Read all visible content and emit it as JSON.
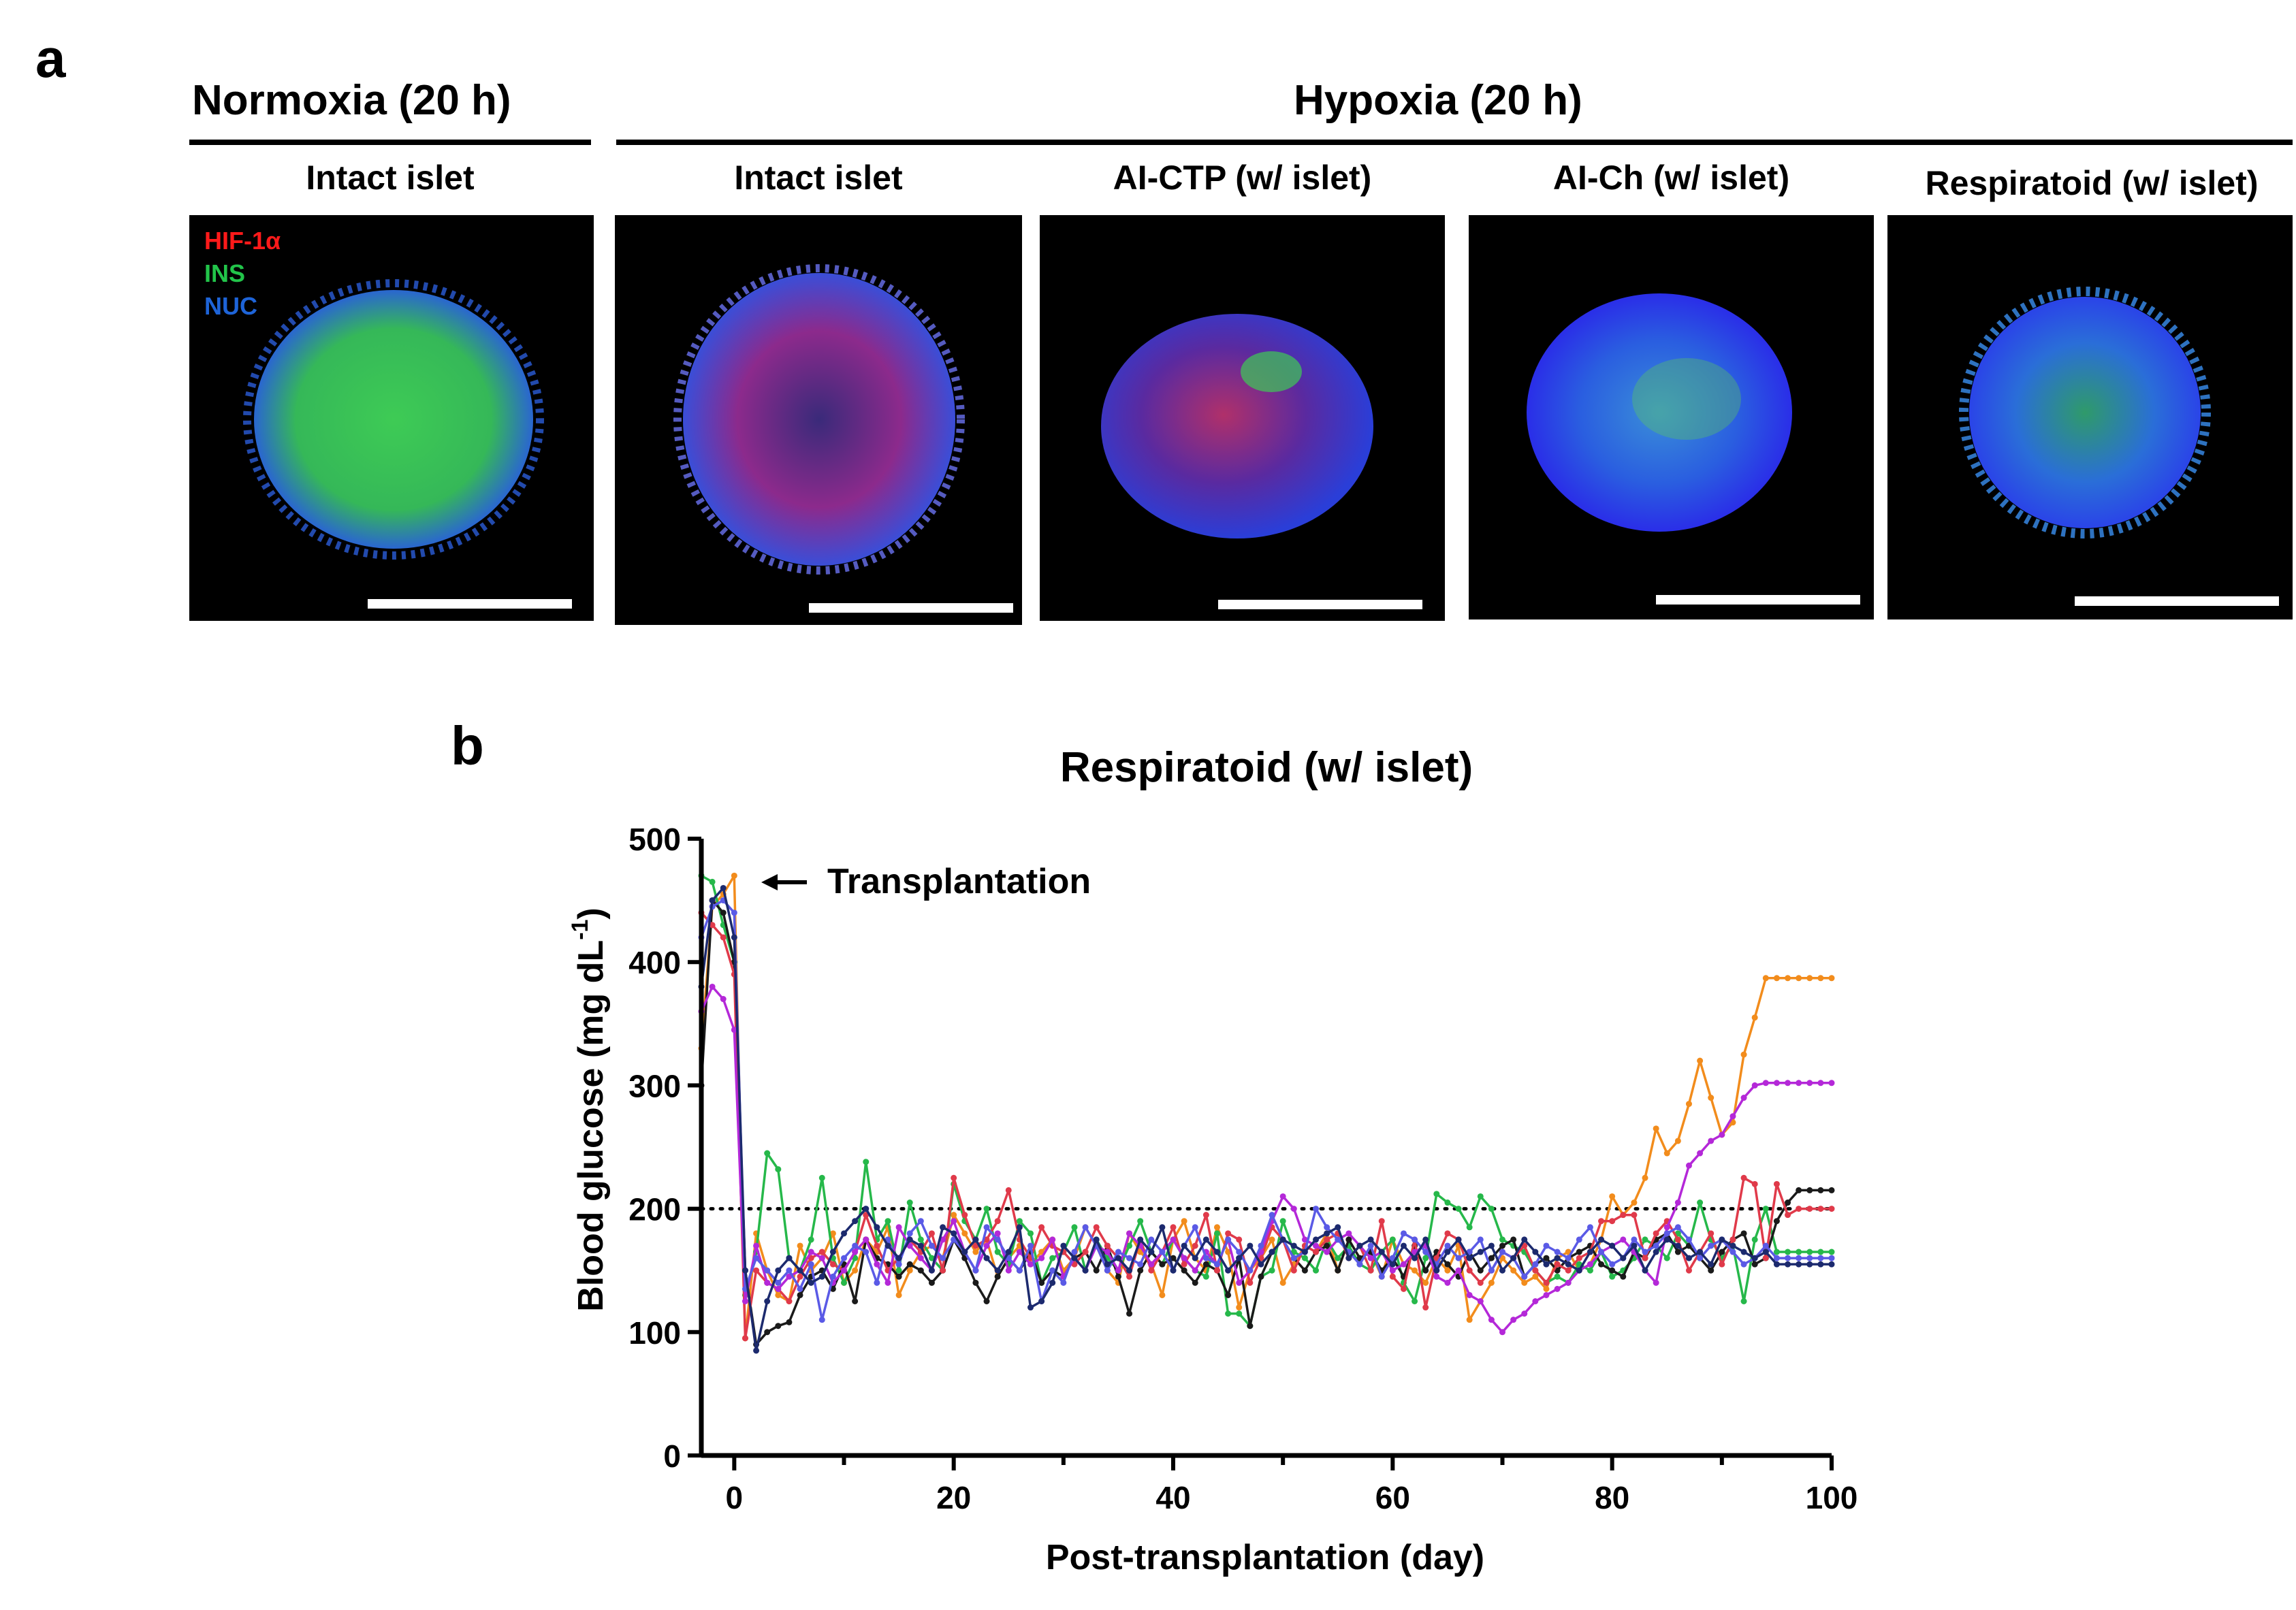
{
  "panel_a": {
    "letter": "a",
    "groups": [
      {
        "title": "Normoxia (20 h)"
      },
      {
        "title": "Hypoxia (20 h)"
      }
    ],
    "panels": [
      {
        "label": "Intact islet",
        "shade": "normoxia"
      },
      {
        "label": "Intact islet",
        "shade": "hypoxia"
      },
      {
        "label": "AI-CTP (w/ islet)",
        "shade": "aictp"
      },
      {
        "label": "AI-Ch (w/ islet)",
        "shade": "aich"
      },
      {
        "label": "Respiratoid (w/ islet)",
        "shade": "respiratoid"
      }
    ],
    "stain_legend": [
      {
        "label": "HIF-1α",
        "color": "#ff1a1a"
      },
      {
        "label": "INS",
        "color": "#22c44a"
      },
      {
        "label": "NUC",
        "color": "#1e64d8"
      }
    ]
  },
  "panel_b": {
    "letter": "b",
    "annotation": "Transplantation"
  },
  "chart_data": {
    "type": "line",
    "title": "Respiratoid (w/ islet)",
    "xlabel": "Post-transplantation (day)",
    "ylabel_main": "Blood glucose (mg dL",
    "ylabel_sup": "-1",
    "ylabel_close": ")",
    "xlim": [
      -3,
      100
    ],
    "ylim": [
      0,
      500
    ],
    "xticks": [
      0,
      20,
      40,
      60,
      80,
      100
    ],
    "yticks": [
      0,
      100,
      200,
      300,
      400,
      500
    ],
    "threshold": 200,
    "x": [
      -3,
      -2,
      -1,
      0,
      1,
      2,
      3,
      4,
      5,
      6,
      7,
      8,
      9,
      10,
      11,
      12,
      13,
      14,
      15,
      16,
      17,
      18,
      19,
      20,
      21,
      22,
      23,
      24,
      25,
      26,
      27,
      28,
      29,
      30,
      31,
      32,
      33,
      34,
      35,
      36,
      37,
      38,
      39,
      40,
      41,
      42,
      43,
      44,
      45,
      46,
      47,
      48,
      49,
      50,
      51,
      52,
      53,
      54,
      55,
      56,
      57,
      58,
      59,
      60,
      61,
      62,
      63,
      64,
      65,
      66,
      67,
      68,
      69,
      70,
      71,
      72,
      73,
      74,
      75,
      76,
      77,
      78,
      79,
      80,
      81,
      82,
      83,
      84,
      85,
      86,
      87,
      88,
      89,
      90,
      91,
      92,
      93,
      94,
      95,
      96,
      97,
      98,
      99,
      100
    ],
    "series": [
      {
        "color": "#f28c1c",
        "values": [
          330,
          445,
          455,
          470,
          95,
          180,
          150,
          130,
          125,
          170,
          150,
          160,
          180,
          140,
          150,
          175,
          165,
          185,
          130,
          150,
          165,
          170,
          160,
          195,
          180,
          165,
          175,
          145,
          160,
          170,
          155,
          165,
          175,
          150,
          160,
          185,
          170,
          150,
          140,
          180,
          165,
          155,
          130,
          175,
          190,
          160,
          150,
          185,
          165,
          120,
          150,
          160,
          175,
          140,
          155,
          170,
          165,
          180,
          150,
          175,
          160,
          165,
          145,
          175,
          155,
          150,
          140,
          160,
          150,
          170,
          110,
          125,
          140,
          160,
          150,
          140,
          145,
          135,
          160,
          165,
          150,
          155,
          175,
          210,
          195,
          205,
          225,
          265,
          245,
          255,
          285,
          320,
          290,
          260,
          270,
          325,
          355,
          387,
          387,
          387,
          387,
          387,
          387,
          387
        ]
      },
      {
        "color": "#26b84a",
        "values": [
          470,
          465,
          430,
          400,
          130,
          165,
          245,
          232,
          160,
          150,
          175,
          225,
          160,
          140,
          160,
          238,
          175,
          190,
          150,
          205,
          175,
          160,
          150,
          220,
          190,
          175,
          200,
          165,
          155,
          190,
          180,
          140,
          160,
          165,
          185,
          150,
          175,
          160,
          150,
          170,
          190,
          165,
          155,
          175,
          160,
          150,
          145,
          180,
          115,
          115,
          105,
          145,
          150,
          190,
          165,
          160,
          150,
          175,
          160,
          170,
          155,
          150,
          165,
          175,
          140,
          125,
          160,
          212,
          205,
          200,
          185,
          210,
          200,
          175,
          170,
          165,
          150,
          140,
          145,
          140,
          155,
          150,
          165,
          145,
          150,
          160,
          175,
          170,
          160,
          180,
          170,
          205,
          175,
          160,
          170,
          125,
          175,
          200,
          165,
          165,
          165,
          165,
          165,
          165
        ]
      },
      {
        "color": "#1a1a1a",
        "values": [
          300,
          450,
          440,
          400,
          150,
          90,
          100,
          105,
          108,
          130,
          145,
          150,
          135,
          155,
          125,
          175,
          160,
          155,
          145,
          155,
          150,
          140,
          150,
          175,
          160,
          140,
          125,
          145,
          160,
          150,
          165,
          140,
          150,
          145,
          160,
          165,
          150,
          170,
          145,
          115,
          150,
          165,
          155,
          160,
          150,
          140,
          155,
          150,
          130,
          160,
          105,
          145,
          165,
          175,
          160,
          150,
          165,
          170,
          150,
          175,
          160,
          165,
          150,
          160,
          145,
          170,
          150,
          165,
          155,
          145,
          165,
          150,
          160,
          170,
          175,
          145,
          155,
          160,
          150,
          160,
          165,
          170,
          155,
          150,
          145,
          165,
          160,
          175,
          180,
          165,
          170,
          160,
          150,
          165,
          175,
          180,
          155,
          160,
          190,
          205,
          215,
          215,
          215,
          215
        ]
      },
      {
        "color": "#e03a4a",
        "values": [
          440,
          430,
          420,
          390,
          95,
          150,
          140,
          135,
          125,
          145,
          160,
          165,
          155,
          150,
          165,
          195,
          170,
          150,
          160,
          175,
          165,
          180,
          150,
          225,
          195,
          170,
          175,
          190,
          215,
          175,
          160,
          185,
          170,
          165,
          155,
          165,
          185,
          170,
          160,
          145,
          175,
          150,
          165,
          185,
          155,
          170,
          195,
          150,
          180,
          175,
          140,
          160,
          185,
          175,
          150,
          170,
          165,
          175,
          180,
          160,
          170,
          150,
          190,
          145,
          135,
          175,
          120,
          160,
          180,
          175,
          150,
          140,
          150,
          165,
          160,
          170,
          150,
          140,
          155,
          150,
          160,
          165,
          190,
          190,
          195,
          195,
          160,
          180,
          190,
          175,
          150,
          165,
          180,
          155,
          175,
          225,
          220,
          160,
          220,
          195,
          200,
          200,
          200,
          200
        ]
      },
      {
        "color": "#b428d8",
        "values": [
          360,
          380,
          370,
          345,
          125,
          170,
          140,
          135,
          145,
          150,
          165,
          160,
          140,
          150,
          165,
          175,
          155,
          140,
          185,
          170,
          160,
          150,
          175,
          190,
          165,
          150,
          170,
          180,
          150,
          165,
          155,
          160,
          175,
          145,
          160,
          150,
          170,
          165,
          150,
          180,
          170,
          155,
          165,
          175,
          160,
          150,
          165,
          155,
          175,
          140,
          150,
          165,
          190,
          210,
          200,
          175,
          170,
          165,
          175,
          180,
          170,
          160,
          165,
          150,
          155,
          165,
          170,
          145,
          140,
          150,
          130,
          125,
          110,
          100,
          110,
          115,
          125,
          130,
          135,
          140,
          150,
          155,
          165,
          170,
          175,
          165,
          150,
          140,
          185,
          205,
          235,
          245,
          255,
          260,
          275,
          290,
          300,
          302,
          302,
          302,
          302,
          302,
          302,
          302
        ]
      },
      {
        "color": "#5a5ae6",
        "values": [
          420,
          445,
          450,
          440,
          135,
          160,
          150,
          140,
          150,
          135,
          155,
          110,
          145,
          160,
          170,
          165,
          140,
          175,
          155,
          180,
          190,
          170,
          160,
          175,
          165,
          150,
          185,
          175,
          160,
          150,
          170,
          125,
          150,
          140,
          165,
          185,
          170,
          150,
          165,
          160,
          155,
          175,
          165,
          150,
          170,
          185,
          160,
          155,
          175,
          165,
          150,
          170,
          195,
          175,
          160,
          165,
          200,
          185,
          175,
          165,
          155,
          170,
          145,
          160,
          180,
          175,
          165,
          155,
          170,
          160,
          165,
          175,
          150,
          165,
          160,
          145,
          155,
          170,
          165,
          160,
          175,
          185,
          165,
          155,
          160,
          175,
          165,
          170,
          180,
          185,
          175,
          160,
          170,
          175,
          165,
          155,
          160,
          170,
          160,
          160,
          160,
          160,
          160,
          160
        ]
      },
      {
        "color": "#1c2a6e",
        "values": [
          380,
          450,
          460,
          420,
          150,
          85,
          125,
          150,
          160,
          150,
          140,
          145,
          165,
          180,
          190,
          200,
          185,
          170,
          160,
          175,
          170,
          150,
          185,
          180,
          165,
          175,
          160,
          150,
          165,
          185,
          120,
          125,
          140,
          170,
          160,
          150,
          175,
          155,
          160,
          150,
          175,
          165,
          185,
          150,
          170,
          160,
          175,
          165,
          150,
          160,
          170,
          155,
          165,
          175,
          170,
          165,
          175,
          180,
          185,
          160,
          170,
          175,
          165,
          155,
          170,
          160,
          175,
          150,
          165,
          175,
          160,
          165,
          170,
          150,
          160,
          175,
          165,
          155,
          160,
          155,
          150,
          165,
          175,
          170,
          160,
          170,
          150,
          165,
          175,
          170,
          160,
          165,
          155,
          175,
          170,
          165,
          160,
          165,
          155,
          155,
          155,
          155,
          155,
          155
        ]
      }
    ]
  }
}
